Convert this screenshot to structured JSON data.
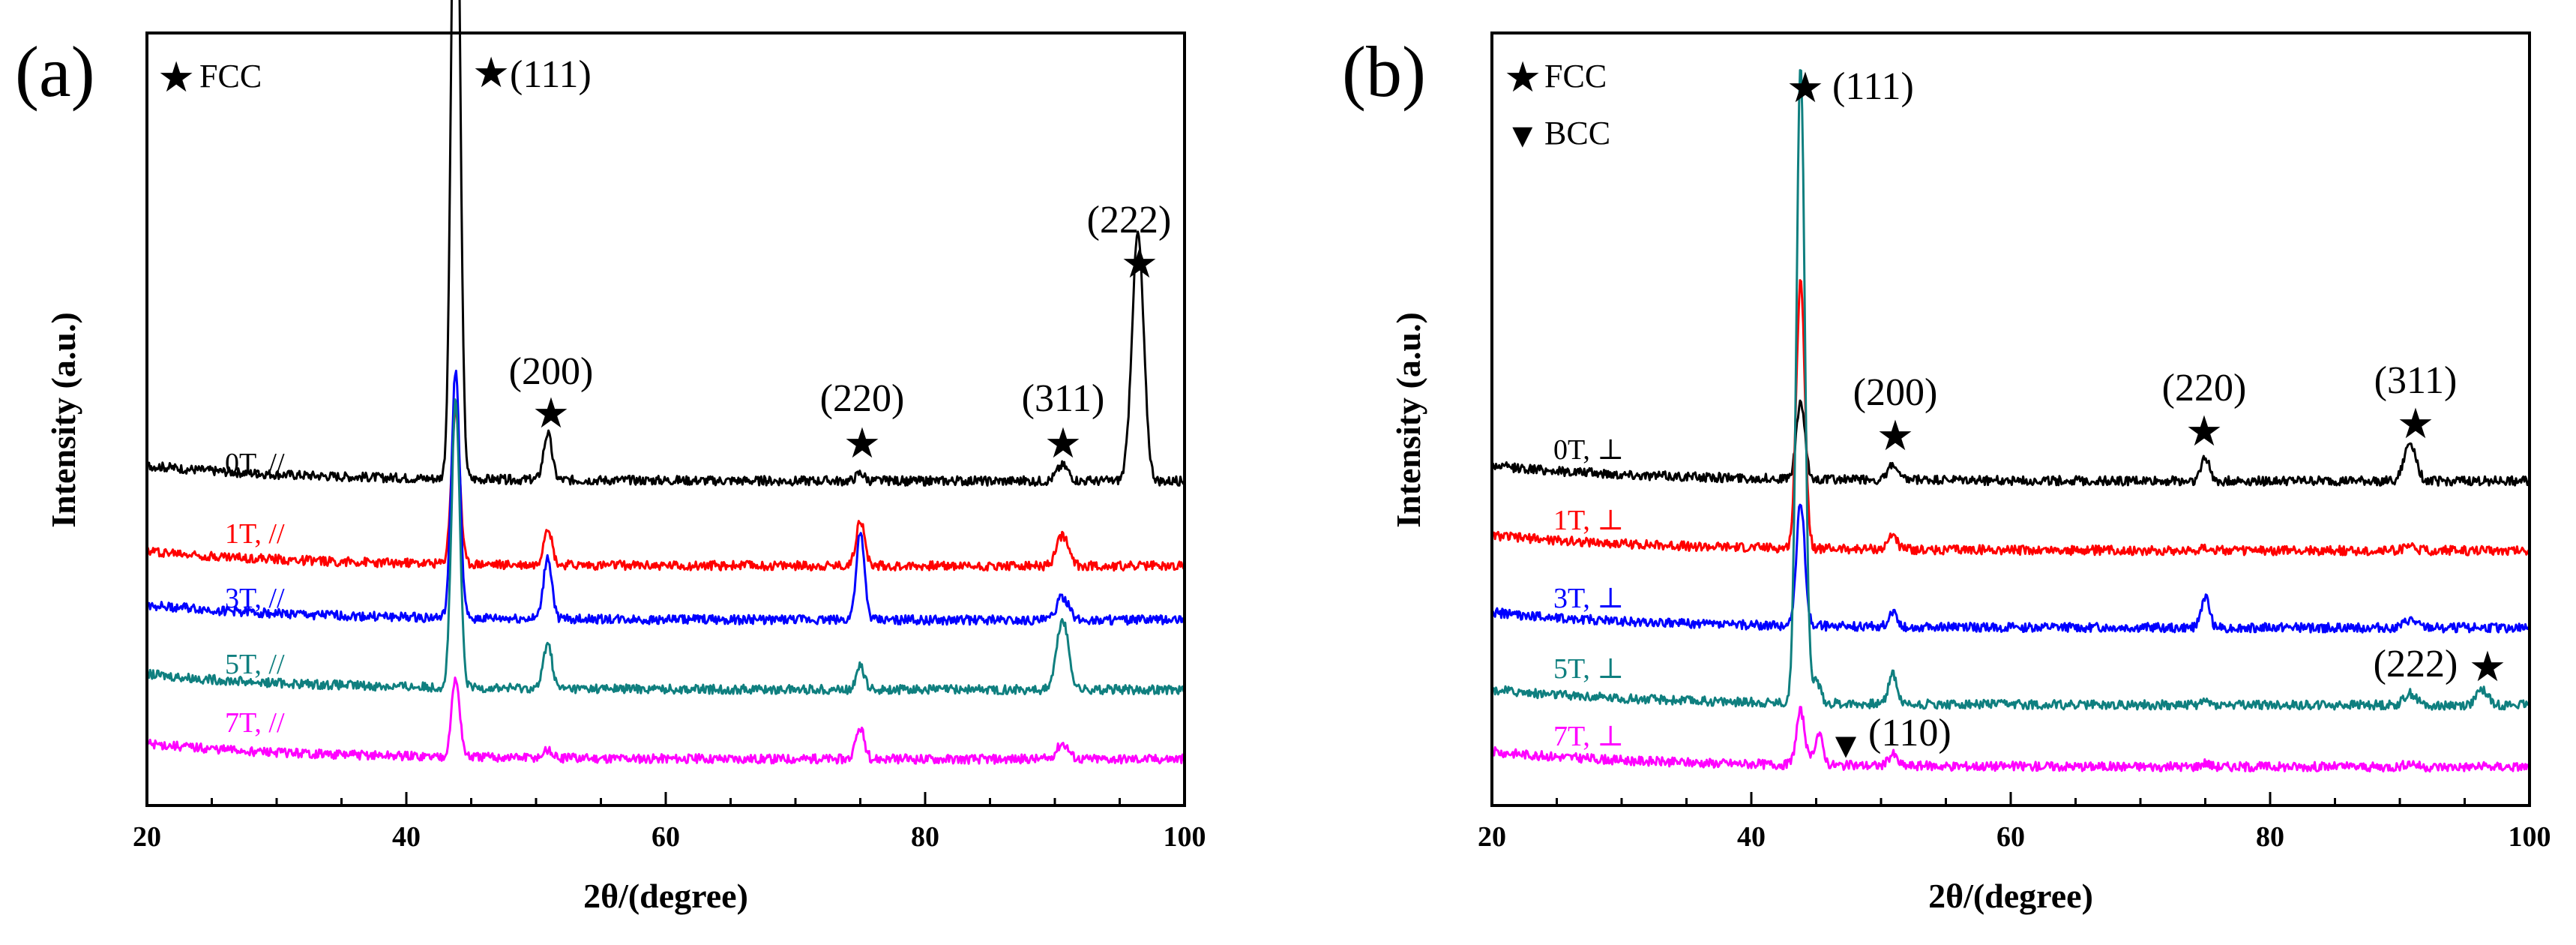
{
  "chart_data": [
    {
      "panel_label": "(a)",
      "type": "line",
      "xlabel": "2θ/(degree)",
      "ylabel": "Intensity (a.u.)",
      "xlim": [
        20,
        100
      ],
      "xticks": [
        "20",
        "40",
        "60",
        "80",
        "100"
      ],
      "legend": [
        {
          "marker": "★",
          "label": "FCC"
        }
      ],
      "peaks": [
        {
          "label": "(111)",
          "position": 43.8,
          "marker": "★"
        },
        {
          "label": "(200)",
          "position": 50.9,
          "marker": "★"
        },
        {
          "label": "(220)",
          "position": 75.0,
          "marker": "★"
        },
        {
          "label": "(311)",
          "position": 90.6,
          "marker": "★"
        },
        {
          "label": "(222)",
          "position": 96.4,
          "marker": "★"
        }
      ],
      "series": [
        {
          "name": "0T, //",
          "color": "#000000",
          "baseline": 0.42,
          "peaks": [
            [
              43.8,
              0.98
            ],
            [
              50.9,
              0.06
            ],
            [
              75.0,
              0.01
            ],
            [
              90.6,
              0.02
            ],
            [
              96.4,
              0.32
            ]
          ]
        },
        {
          "name": "1T, //",
          "color": "#ff0000",
          "baseline": 0.31,
          "peaks": [
            [
              43.8,
              0.2
            ],
            [
              50.9,
              0.05
            ],
            [
              75.0,
              0.06
            ],
            [
              90.6,
              0.04
            ]
          ]
        },
        {
          "name": "3T, //",
          "color": "#0000ff",
          "baseline": 0.24,
          "peaks": [
            [
              43.8,
              0.32
            ],
            [
              50.9,
              0.08
            ],
            [
              75.0,
              0.11
            ],
            [
              90.6,
              0.03
            ]
          ]
        },
        {
          "name": "5T, //",
          "color": "#0f7f7f",
          "baseline": 0.15,
          "peaks": [
            [
              43.8,
              0.37
            ],
            [
              50.9,
              0.06
            ],
            [
              75.0,
              0.03
            ],
            [
              90.6,
              0.09
            ]
          ]
        },
        {
          "name": "7T, //",
          "color": "#ff00ff",
          "baseline": 0.06,
          "peaks": [
            [
              43.8,
              0.1
            ],
            [
              50.9,
              0.01
            ],
            [
              75.0,
              0.04
            ],
            [
              90.6,
              0.02
            ]
          ]
        }
      ]
    },
    {
      "panel_label": "(b)",
      "type": "line",
      "xlabel": "2θ/(degree)",
      "ylabel": "Intensity (a.u.)",
      "xlim": [
        20,
        100
      ],
      "xticks": [
        "20",
        "40",
        "60",
        "80",
        "100"
      ],
      "legend": [
        {
          "marker": "★",
          "label": "FCC"
        },
        {
          "marker": "▼",
          "label": "BCC"
        }
      ],
      "peaks": [
        {
          "label": "(111)",
          "position": 43.8,
          "marker": "★"
        },
        {
          "label": "(200)",
          "position": 50.9,
          "marker": "★"
        },
        {
          "label": "(220)",
          "position": 75.0,
          "marker": "★"
        },
        {
          "label": "(311)",
          "position": 90.8,
          "marker": "★"
        },
        {
          "label": "(222)",
          "position": 96.4,
          "marker": "★"
        },
        {
          "label": "(110)",
          "position": 45.2,
          "marker": "▼"
        }
      ],
      "series": [
        {
          "name": "0T, ⊥",
          "color": "#000000",
          "baseline": 0.42,
          "peaks": [
            [
              43.8,
              0.1
            ],
            [
              50.9,
              0.02
            ],
            [
              75.0,
              0.03
            ],
            [
              90.8,
              0.05
            ]
          ]
        },
        {
          "name": "1T, ⊥",
          "color": "#ff0000",
          "baseline": 0.33,
          "peaks": [
            [
              43.8,
              0.35
            ],
            [
              50.9,
              0.02
            ],
            [
              75.0,
              0.005
            ],
            [
              90.8,
              0.005
            ]
          ]
        },
        {
          "name": "3T, ⊥",
          "color": "#0000ff",
          "baseline": 0.23,
          "peaks": [
            [
              43.8,
              0.16
            ],
            [
              50.9,
              0.02
            ],
            [
              75.0,
              0.04
            ],
            [
              90.8,
              0.01
            ]
          ]
        },
        {
          "name": "5T, ⊥",
          "color": "#0f7f7f",
          "baseline": 0.13,
          "peaks": [
            [
              43.8,
              0.83
            ],
            [
              45.0,
              0.03
            ],
            [
              50.9,
              0.04
            ],
            [
              75.0,
              0.005
            ],
            [
              90.8,
              0.015
            ],
            [
              96.4,
              0.02
            ]
          ]
        },
        {
          "name": "7T, ⊥",
          "color": "#ff00ff",
          "baseline": 0.05,
          "peaks": [
            [
              43.8,
              0.07
            ],
            [
              45.2,
              0.04
            ],
            [
              50.9,
              0.015
            ],
            [
              75.0,
              0.005
            ],
            [
              90.8,
              0.005
            ]
          ]
        }
      ]
    }
  ]
}
